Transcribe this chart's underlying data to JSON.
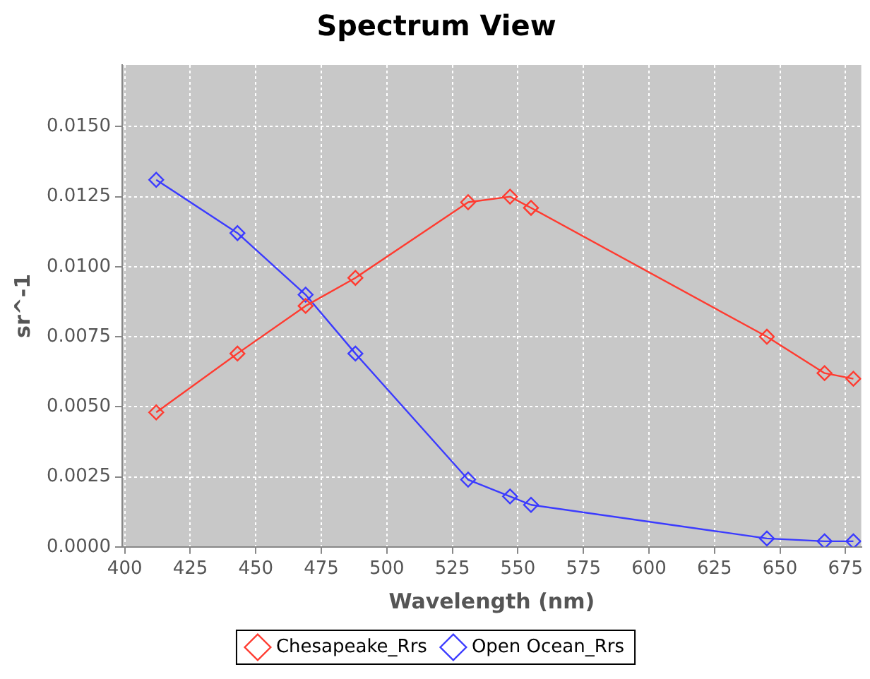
{
  "chart_data": {
    "type": "line",
    "title": "Spectrum View",
    "xlabel": "Wavelength (nm)",
    "ylabel": "sr^-1",
    "x": [
      412,
      443,
      469,
      488,
      531,
      547,
      555,
      645,
      667,
      678
    ],
    "series": [
      {
        "name": "Chesapeake_Rrs",
        "color": "#ff3b30",
        "values": [
          0.0048,
          0.0069,
          0.0086,
          0.0096,
          0.0123,
          0.0125,
          0.0121,
          0.0075,
          0.0062,
          0.006
        ]
      },
      {
        "name": "Open Ocean_Rrs",
        "color": "#3b3bff",
        "values": [
          0.0131,
          0.0112,
          0.009,
          0.0069,
          0.0024,
          0.0018,
          0.0015,
          0.0003,
          0.0002,
          0.0002
        ]
      }
    ],
    "xlim": [
      399,
      681
    ],
    "xticks": [
      400,
      425,
      450,
      475,
      500,
      525,
      550,
      575,
      600,
      625,
      650,
      675
    ],
    "ylim": [
      0,
      0.0172
    ],
    "yticks": [
      {
        "value": 0,
        "label": "0.0000"
      },
      {
        "value": 0.0025,
        "label": "0.0025"
      },
      {
        "value": 0.005,
        "label": "0.0050"
      },
      {
        "value": 0.0075,
        "label": "0.0075"
      },
      {
        "value": 0.01,
        "label": "0.0100"
      },
      {
        "value": 0.0125,
        "label": "0.0125"
      },
      {
        "value": 0.015,
        "label": "0.0150"
      }
    ],
    "grid": true,
    "legend": "bottom",
    "marker": "diamond",
    "line_style": "solid"
  }
}
